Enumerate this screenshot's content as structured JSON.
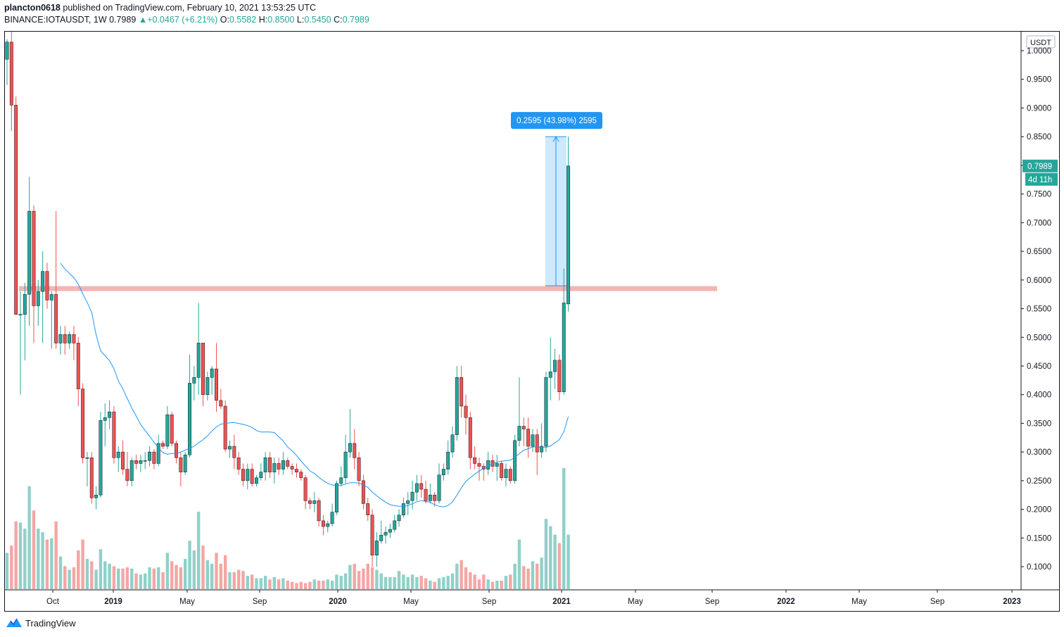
{
  "header": {
    "author": "plancton0618",
    "published_text": "published on TradingView.com, February 10, 2021 13:53:25 UTC",
    "symbol": "BINANCE:IOTAUSDT, 1W",
    "last": "0.7989",
    "change": "+0.0467 (+6.21%)",
    "o_label": "O:",
    "o_value": "0.5582",
    "h_label": "H:",
    "h_value": "0.8500",
    "l_label": "L:",
    "l_value": "0.5450",
    "c_label": "C:",
    "c_value": "0.7989"
  },
  "footer": {
    "brand": "TradingView",
    "logo_icon": "tradingview-logo-icon"
  },
  "chart_data": {
    "type": "candlestick",
    "currency": "USDT",
    "y_ticks": [
      "1.0000",
      "0.9500",
      "0.9000",
      "0.8500",
      "0.8000",
      "0.7500",
      "0.7000",
      "0.6500",
      "0.6000",
      "0.5500",
      "0.5000",
      "0.4500",
      "0.4000",
      "0.3500",
      "0.3000",
      "0.2500",
      "0.2000",
      "0.1500",
      "0.1000"
    ],
    "x_ticks": [
      "Oct",
      "2019",
      "May",
      "Sep",
      "2020",
      "May",
      "Sep",
      "2021",
      "May",
      "Sep",
      "2022",
      "May",
      "Sep",
      "2023"
    ],
    "last_price_label": "0.7989",
    "countdown_label": "4d 11h",
    "measure_label": "0.2595 (43.98%) 2595",
    "measure_range": [
      0.59,
      0.85
    ],
    "resistance_level": 0.585,
    "colors": {
      "up": "#26a69a",
      "down": "#ef5350",
      "vol_up": "#8fd1c9",
      "vol_down": "#f4a6a4",
      "ma": "#2196f3",
      "zone": "#f7b3b3",
      "measure": "#2196f3"
    },
    "weekly": [
      {
        "o": 0.985,
        "h": 1.02,
        "l": 0.94,
        "c": 1.015,
        "v": 0.3
      },
      {
        "o": 1.015,
        "h": 1.04,
        "l": 0.86,
        "c": 0.905,
        "v": 0.36
      },
      {
        "o": 0.905,
        "h": 0.92,
        "l": 0.54,
        "c": 0.54,
        "v": 0.56
      },
      {
        "o": 0.54,
        "h": 0.58,
        "l": 0.4,
        "c": 0.54,
        "v": 0.55
      },
      {
        "o": 0.54,
        "h": 0.595,
        "l": 0.46,
        "c": 0.575,
        "v": 0.5
      },
      {
        "o": 0.575,
        "h": 0.78,
        "l": 0.52,
        "c": 0.72,
        "v": 0.85
      },
      {
        "o": 0.72,
        "h": 0.73,
        "l": 0.49,
        "c": 0.555,
        "v": 0.65
      },
      {
        "o": 0.555,
        "h": 0.6,
        "l": 0.52,
        "c": 0.58,
        "v": 0.5
      },
      {
        "o": 0.58,
        "h": 0.65,
        "l": 0.49,
        "c": 0.615,
        "v": 0.47
      },
      {
        "o": 0.615,
        "h": 0.63,
        "l": 0.55,
        "c": 0.565,
        "v": 0.41
      },
      {
        "o": 0.565,
        "h": 0.58,
        "l": 0.48,
        "c": 0.575,
        "v": 0.42
      },
      {
        "o": 0.575,
        "h": 0.72,
        "l": 0.48,
        "c": 0.49,
        "v": 0.56
      },
      {
        "o": 0.49,
        "h": 0.52,
        "l": 0.47,
        "c": 0.505,
        "v": 0.27
      },
      {
        "o": 0.505,
        "h": 0.52,
        "l": 0.47,
        "c": 0.49,
        "v": 0.19
      },
      {
        "o": 0.49,
        "h": 0.51,
        "l": 0.48,
        "c": 0.505,
        "v": 0.16
      },
      {
        "o": 0.505,
        "h": 0.52,
        "l": 0.46,
        "c": 0.49,
        "v": 0.18
      },
      {
        "o": 0.49,
        "h": 0.5,
        "l": 0.38,
        "c": 0.41,
        "v": 0.32
      },
      {
        "o": 0.41,
        "h": 0.42,
        "l": 0.28,
        "c": 0.29,
        "v": 0.41
      },
      {
        "o": 0.29,
        "h": 0.3,
        "l": 0.24,
        "c": 0.29,
        "v": 0.25
      },
      {
        "o": 0.29,
        "h": 0.3,
        "l": 0.21,
        "c": 0.22,
        "v": 0.23
      },
      {
        "o": 0.22,
        "h": 0.24,
        "l": 0.2,
        "c": 0.225,
        "v": 0.16
      },
      {
        "o": 0.225,
        "h": 0.37,
        "l": 0.22,
        "c": 0.355,
        "v": 0.33
      },
      {
        "o": 0.355,
        "h": 0.385,
        "l": 0.31,
        "c": 0.36,
        "v": 0.23
      },
      {
        "o": 0.36,
        "h": 0.39,
        "l": 0.34,
        "c": 0.37,
        "v": 0.21
      },
      {
        "o": 0.37,
        "h": 0.38,
        "l": 0.28,
        "c": 0.29,
        "v": 0.19
      },
      {
        "o": 0.29,
        "h": 0.31,
        "l": 0.265,
        "c": 0.3,
        "v": 0.17
      },
      {
        "o": 0.3,
        "h": 0.32,
        "l": 0.26,
        "c": 0.27,
        "v": 0.17
      },
      {
        "o": 0.27,
        "h": 0.3,
        "l": 0.24,
        "c": 0.25,
        "v": 0.18
      },
      {
        "o": 0.25,
        "h": 0.29,
        "l": 0.24,
        "c": 0.285,
        "v": 0.17
      },
      {
        "o": 0.285,
        "h": 0.295,
        "l": 0.27,
        "c": 0.28,
        "v": 0.13
      },
      {
        "o": 0.28,
        "h": 0.295,
        "l": 0.265,
        "c": 0.285,
        "v": 0.12
      },
      {
        "o": 0.285,
        "h": 0.3,
        "l": 0.27,
        "c": 0.285,
        "v": 0.13
      },
      {
        "o": 0.285,
        "h": 0.31,
        "l": 0.275,
        "c": 0.3,
        "v": 0.18
      },
      {
        "o": 0.3,
        "h": 0.305,
        "l": 0.27,
        "c": 0.28,
        "v": 0.17
      },
      {
        "o": 0.28,
        "h": 0.33,
        "l": 0.275,
        "c": 0.315,
        "v": 0.18
      },
      {
        "o": 0.315,
        "h": 0.32,
        "l": 0.305,
        "c": 0.31,
        "v": 0.14
      },
      {
        "o": 0.31,
        "h": 0.38,
        "l": 0.305,
        "c": 0.365,
        "v": 0.3
      },
      {
        "o": 0.365,
        "h": 0.37,
        "l": 0.31,
        "c": 0.315,
        "v": 0.23
      },
      {
        "o": 0.315,
        "h": 0.32,
        "l": 0.28,
        "c": 0.29,
        "v": 0.2
      },
      {
        "o": 0.29,
        "h": 0.3,
        "l": 0.24,
        "c": 0.265,
        "v": 0.18
      },
      {
        "o": 0.265,
        "h": 0.3,
        "l": 0.26,
        "c": 0.295,
        "v": 0.25
      },
      {
        "o": 0.295,
        "h": 0.47,
        "l": 0.29,
        "c": 0.42,
        "v": 0.4
      },
      {
        "o": 0.42,
        "h": 0.45,
        "l": 0.39,
        "c": 0.43,
        "v": 0.32
      },
      {
        "o": 0.43,
        "h": 0.56,
        "l": 0.4,
        "c": 0.49,
        "v": 0.64
      },
      {
        "o": 0.49,
        "h": 0.49,
        "l": 0.38,
        "c": 0.4,
        "v": 0.36
      },
      {
        "o": 0.4,
        "h": 0.44,
        "l": 0.39,
        "c": 0.43,
        "v": 0.24
      },
      {
        "o": 0.43,
        "h": 0.45,
        "l": 0.4,
        "c": 0.445,
        "v": 0.21
      },
      {
        "o": 0.445,
        "h": 0.49,
        "l": 0.37,
        "c": 0.39,
        "v": 0.3
      },
      {
        "o": 0.39,
        "h": 0.41,
        "l": 0.375,
        "c": 0.38,
        "v": 0.21
      },
      {
        "o": 0.38,
        "h": 0.39,
        "l": 0.3,
        "c": 0.305,
        "v": 0.28
      },
      {
        "o": 0.305,
        "h": 0.32,
        "l": 0.29,
        "c": 0.31,
        "v": 0.14
      },
      {
        "o": 0.31,
        "h": 0.33,
        "l": 0.27,
        "c": 0.29,
        "v": 0.14
      },
      {
        "o": 0.29,
        "h": 0.3,
        "l": 0.26,
        "c": 0.27,
        "v": 0.16
      },
      {
        "o": 0.27,
        "h": 0.28,
        "l": 0.24,
        "c": 0.25,
        "v": 0.15
      },
      {
        "o": 0.25,
        "h": 0.28,
        "l": 0.235,
        "c": 0.27,
        "v": 0.11
      },
      {
        "o": 0.27,
        "h": 0.28,
        "l": 0.24,
        "c": 0.245,
        "v": 0.12
      },
      {
        "o": 0.245,
        "h": 0.26,
        "l": 0.24,
        "c": 0.255,
        "v": 0.09
      },
      {
        "o": 0.255,
        "h": 0.28,
        "l": 0.25,
        "c": 0.265,
        "v": 0.09
      },
      {
        "o": 0.265,
        "h": 0.3,
        "l": 0.25,
        "c": 0.29,
        "v": 0.11
      },
      {
        "o": 0.29,
        "h": 0.3,
        "l": 0.255,
        "c": 0.265,
        "v": 0.08
      },
      {
        "o": 0.265,
        "h": 0.29,
        "l": 0.245,
        "c": 0.28,
        "v": 0.1
      },
      {
        "o": 0.28,
        "h": 0.29,
        "l": 0.26,
        "c": 0.27,
        "v": 0.08
      },
      {
        "o": 0.27,
        "h": 0.3,
        "l": 0.26,
        "c": 0.285,
        "v": 0.09
      },
      {
        "o": 0.285,
        "h": 0.29,
        "l": 0.27,
        "c": 0.275,
        "v": 0.07
      },
      {
        "o": 0.275,
        "h": 0.28,
        "l": 0.26,
        "c": 0.27,
        "v": 0.06
      },
      {
        "o": 0.27,
        "h": 0.28,
        "l": 0.255,
        "c": 0.265,
        "v": 0.05
      },
      {
        "o": 0.265,
        "h": 0.27,
        "l": 0.25,
        "c": 0.255,
        "v": 0.06
      },
      {
        "o": 0.255,
        "h": 0.26,
        "l": 0.2,
        "c": 0.215,
        "v": 0.05
      },
      {
        "o": 0.215,
        "h": 0.22,
        "l": 0.2,
        "c": 0.21,
        "v": 0.06
      },
      {
        "o": 0.21,
        "h": 0.23,
        "l": 0.195,
        "c": 0.215,
        "v": 0.08
      },
      {
        "o": 0.215,
        "h": 0.22,
        "l": 0.17,
        "c": 0.18,
        "v": 0.07
      },
      {
        "o": 0.18,
        "h": 0.19,
        "l": 0.155,
        "c": 0.17,
        "v": 0.07
      },
      {
        "o": 0.17,
        "h": 0.18,
        "l": 0.16,
        "c": 0.175,
        "v": 0.08
      },
      {
        "o": 0.175,
        "h": 0.21,
        "l": 0.17,
        "c": 0.195,
        "v": 0.07
      },
      {
        "o": 0.195,
        "h": 0.25,
        "l": 0.19,
        "c": 0.245,
        "v": 0.12
      },
      {
        "o": 0.245,
        "h": 0.275,
        "l": 0.24,
        "c": 0.255,
        "v": 0.11
      },
      {
        "o": 0.255,
        "h": 0.33,
        "l": 0.245,
        "c": 0.3,
        "v": 0.13
      },
      {
        "o": 0.3,
        "h": 0.375,
        "l": 0.29,
        "c": 0.315,
        "v": 0.2
      },
      {
        "o": 0.315,
        "h": 0.34,
        "l": 0.27,
        "c": 0.29,
        "v": 0.21
      },
      {
        "o": 0.29,
        "h": 0.3,
        "l": 0.24,
        "c": 0.25,
        "v": 0.15
      },
      {
        "o": 0.25,
        "h": 0.26,
        "l": 0.2,
        "c": 0.21,
        "v": 0.17
      },
      {
        "o": 0.21,
        "h": 0.22,
        "l": 0.18,
        "c": 0.19,
        "v": 0.21
      },
      {
        "o": 0.19,
        "h": 0.2,
        "l": 0.1,
        "c": 0.12,
        "v": 0.18
      },
      {
        "o": 0.12,
        "h": 0.16,
        "l": 0.1,
        "c": 0.145,
        "v": 0.16
      },
      {
        "o": 0.145,
        "h": 0.18,
        "l": 0.14,
        "c": 0.155,
        "v": 0.13
      },
      {
        "o": 0.155,
        "h": 0.17,
        "l": 0.14,
        "c": 0.16,
        "v": 0.1
      },
      {
        "o": 0.16,
        "h": 0.175,
        "l": 0.15,
        "c": 0.165,
        "v": 0.1
      },
      {
        "o": 0.165,
        "h": 0.19,
        "l": 0.16,
        "c": 0.18,
        "v": 0.1
      },
      {
        "o": 0.18,
        "h": 0.2,
        "l": 0.17,
        "c": 0.19,
        "v": 0.15
      },
      {
        "o": 0.19,
        "h": 0.22,
        "l": 0.185,
        "c": 0.21,
        "v": 0.12
      },
      {
        "o": 0.21,
        "h": 0.23,
        "l": 0.19,
        "c": 0.215,
        "v": 0.1
      },
      {
        "o": 0.215,
        "h": 0.25,
        "l": 0.2,
        "c": 0.23,
        "v": 0.12
      },
      {
        "o": 0.23,
        "h": 0.26,
        "l": 0.215,
        "c": 0.245,
        "v": 0.1
      },
      {
        "o": 0.245,
        "h": 0.26,
        "l": 0.22,
        "c": 0.235,
        "v": 0.11
      },
      {
        "o": 0.235,
        "h": 0.25,
        "l": 0.21,
        "c": 0.215,
        "v": 0.09
      },
      {
        "o": 0.215,
        "h": 0.245,
        "l": 0.21,
        "c": 0.225,
        "v": 0.07
      },
      {
        "o": 0.225,
        "h": 0.23,
        "l": 0.205,
        "c": 0.215,
        "v": 0.06
      },
      {
        "o": 0.215,
        "h": 0.28,
        "l": 0.21,
        "c": 0.26,
        "v": 0.09
      },
      {
        "o": 0.26,
        "h": 0.28,
        "l": 0.25,
        "c": 0.27,
        "v": 0.1
      },
      {
        "o": 0.27,
        "h": 0.32,
        "l": 0.26,
        "c": 0.3,
        "v": 0.11
      },
      {
        "o": 0.3,
        "h": 0.345,
        "l": 0.29,
        "c": 0.33,
        "v": 0.13
      },
      {
        "o": 0.33,
        "h": 0.45,
        "l": 0.32,
        "c": 0.43,
        "v": 0.21
      },
      {
        "o": 0.43,
        "h": 0.45,
        "l": 0.36,
        "c": 0.38,
        "v": 0.24
      },
      {
        "o": 0.38,
        "h": 0.4,
        "l": 0.33,
        "c": 0.36,
        "v": 0.18
      },
      {
        "o": 0.36,
        "h": 0.37,
        "l": 0.27,
        "c": 0.29,
        "v": 0.14
      },
      {
        "o": 0.29,
        "h": 0.31,
        "l": 0.27,
        "c": 0.28,
        "v": 0.12
      },
      {
        "o": 0.28,
        "h": 0.29,
        "l": 0.25,
        "c": 0.275,
        "v": 0.08
      },
      {
        "o": 0.275,
        "h": 0.28,
        "l": 0.25,
        "c": 0.27,
        "v": 0.12
      },
      {
        "o": 0.27,
        "h": 0.3,
        "l": 0.26,
        "c": 0.285,
        "v": 0.08
      },
      {
        "o": 0.285,
        "h": 0.295,
        "l": 0.265,
        "c": 0.275,
        "v": 0.06
      },
      {
        "o": 0.275,
        "h": 0.295,
        "l": 0.25,
        "c": 0.28,
        "v": 0.07
      },
      {
        "o": 0.28,
        "h": 0.285,
        "l": 0.25,
        "c": 0.255,
        "v": 0.07
      },
      {
        "o": 0.255,
        "h": 0.28,
        "l": 0.24,
        "c": 0.27,
        "v": 0.11
      },
      {
        "o": 0.27,
        "h": 0.275,
        "l": 0.245,
        "c": 0.25,
        "v": 0.12
      },
      {
        "o": 0.25,
        "h": 0.33,
        "l": 0.245,
        "c": 0.32,
        "v": 0.21
      },
      {
        "o": 0.32,
        "h": 0.43,
        "l": 0.31,
        "c": 0.345,
        "v": 0.41
      },
      {
        "o": 0.345,
        "h": 0.36,
        "l": 0.31,
        "c": 0.34,
        "v": 0.19
      },
      {
        "o": 0.34,
        "h": 0.36,
        "l": 0.29,
        "c": 0.31,
        "v": 0.17
      },
      {
        "o": 0.31,
        "h": 0.34,
        "l": 0.3,
        "c": 0.33,
        "v": 0.23
      },
      {
        "o": 0.33,
        "h": 0.34,
        "l": 0.26,
        "c": 0.3,
        "v": 0.21
      },
      {
        "o": 0.3,
        "h": 0.35,
        "l": 0.29,
        "c": 0.31,
        "v": 0.26
      },
      {
        "o": 0.31,
        "h": 0.44,
        "l": 0.3,
        "c": 0.43,
        "v": 0.58
      },
      {
        "o": 0.43,
        "h": 0.5,
        "l": 0.39,
        "c": 0.44,
        "v": 0.52
      },
      {
        "o": 0.44,
        "h": 0.48,
        "l": 0.41,
        "c": 0.46,
        "v": 0.45
      },
      {
        "o": 0.46,
        "h": 0.47,
        "l": 0.39,
        "c": 0.405,
        "v": 0.38
      },
      {
        "o": 0.405,
        "h": 0.62,
        "l": 0.4,
        "c": 0.56,
        "v": 1.0
      },
      {
        "o": 0.5582,
        "h": 0.85,
        "l": 0.545,
        "c": 0.7989,
        "v": 0.45
      }
    ]
  }
}
